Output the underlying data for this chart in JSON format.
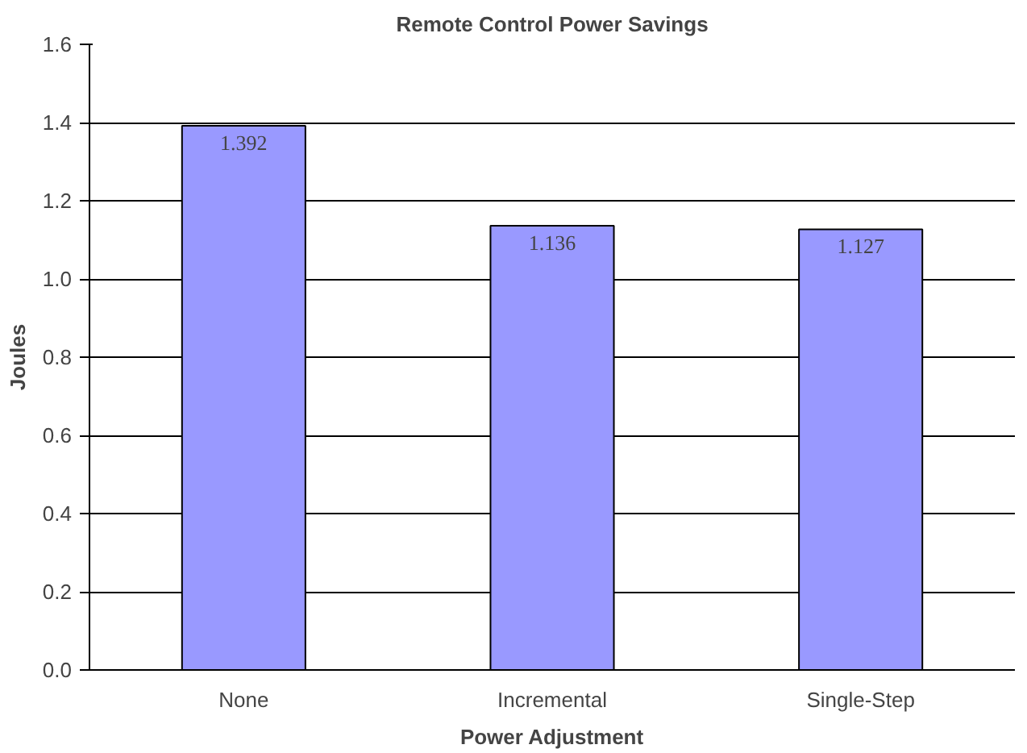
{
  "chart_data": {
    "type": "bar",
    "title": "Remote Control Power Savings",
    "xlabel": "Power Adjustment",
    "ylabel": "Joules",
    "categories": [
      "None",
      "Incremental",
      "Single-Step"
    ],
    "values": [
      1.392,
      1.136,
      1.127
    ],
    "color": "#9999ff",
    "ylim": [
      0,
      1.6
    ],
    "yticks": [
      {
        "value": 0,
        "label": "0.0"
      },
      0.2,
      0.4,
      0.6,
      0.8,
      {
        "value": 1,
        "label": "1.0"
      },
      1.2,
      1.4,
      1.6
    ],
    "grid": "y",
    "data_labels": true
  }
}
